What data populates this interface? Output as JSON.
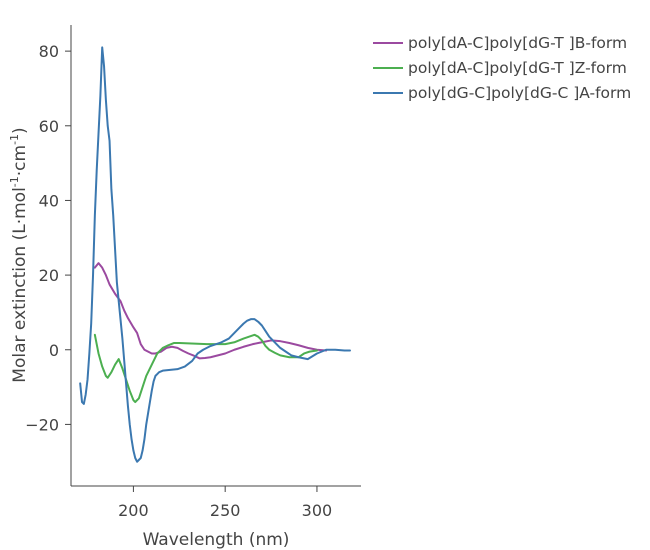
{
  "chart_data": {
    "type": "line",
    "title": "",
    "xlabel": "Wavelength (nm)",
    "ylabel": {
      "base": "Molar extinction (L·mol",
      "sup1": "-1",
      "mid": "·cm",
      "sup2": "-1",
      "end": ")"
    },
    "xlim": [
      166,
      324
    ],
    "ylim": [
      -36.5,
      87
    ],
    "xticks": [
      200,
      250,
      300
    ],
    "xtick_labels": [
      "200",
      "250",
      "300"
    ],
    "yticks": [
      80,
      60,
      40,
      20,
      0,
      -20
    ],
    "ytick_labels": [
      "80",
      "60",
      "40",
      "20",
      "0",
      "−20"
    ],
    "legend_position": "top-right",
    "series": [
      {
        "name": "poly[dA-C]poly[dG-T ]B-form",
        "color": "#9b4aa0",
        "x": [
          179,
          181,
          183,
          185,
          187,
          190,
          193,
          195,
          197,
          200,
          202,
          204,
          206,
          208,
          210,
          212,
          215,
          218,
          221,
          224,
          227,
          230,
          233,
          236,
          239,
          242,
          246,
          250,
          255,
          260,
          265,
          270,
          275,
          280,
          285,
          290,
          295,
          300,
          305
        ],
        "y": [
          22,
          23.2,
          22,
          20,
          17.5,
          15,
          13,
          10.5,
          8.5,
          6,
          4.5,
          1.5,
          0,
          -0.5,
          -1,
          -1,
          -0.5,
          0.5,
          0.8,
          0.5,
          -0.3,
          -1,
          -1.6,
          -2.3,
          -2.2,
          -2,
          -1.5,
          -1,
          0,
          0.8,
          1.5,
          2,
          2.5,
          2.3,
          1.8,
          1.2,
          0.5,
          0,
          -0.2
        ]
      },
      {
        "name": "poly[dA-C]poly[dG-T ]Z-form",
        "color": "#4caf50",
        "x": [
          179,
          181,
          183,
          185,
          186,
          188,
          190,
          192,
          194,
          196,
          198,
          200,
          201,
          203,
          205,
          207,
          210,
          213,
          216,
          219,
          222,
          225,
          230,
          240,
          250,
          255,
          260,
          263,
          266,
          268,
          270,
          272,
          274,
          277,
          280,
          285,
          290,
          293,
          296,
          300
        ],
        "y": [
          4,
          -1,
          -4.5,
          -7,
          -7.5,
          -6,
          -4,
          -2.5,
          -5,
          -8,
          -11,
          -13.5,
          -14,
          -13,
          -10,
          -7,
          -4,
          -1,
          0.5,
          1.2,
          1.8,
          1.8,
          1.7,
          1.5,
          1.5,
          2,
          3,
          3.5,
          4,
          3.5,
          2.5,
          1,
          0,
          -0.8,
          -1.5,
          -2,
          -2,
          -1,
          -0.5,
          -0.2
        ]
      },
      {
        "name": "poly[dG-C]poly[dG-C ]A-form",
        "color": "#3b78b0",
        "x": [
          171,
          172,
          173,
          174,
          175,
          176,
          177,
          178,
          179,
          180,
          181,
          182,
          183,
          184,
          185,
          186,
          187,
          188,
          189,
          190,
          191,
          192,
          193,
          194,
          195,
          196,
          197,
          198,
          199,
          200,
          201,
          202,
          203,
          204,
          205,
          206,
          207,
          208,
          209,
          210,
          211,
          212,
          213,
          214,
          215,
          216,
          218,
          220,
          224,
          228,
          232,
          235,
          238,
          240,
          242,
          245,
          248,
          252,
          255,
          258,
          260,
          262,
          264,
          266,
          268,
          270,
          272,
          274,
          276,
          278,
          280,
          283,
          286,
          290,
          295,
          300,
          305,
          310,
          315,
          318
        ],
        "y": [
          -9,
          -14,
          -14.5,
          -12,
          -8,
          -1,
          7,
          20,
          36,
          48,
          58,
          68,
          81,
          76,
          67,
          60,
          56,
          43,
          36,
          27,
          18,
          13,
          8,
          3,
          -3,
          -9,
          -15,
          -20,
          -24,
          -27,
          -29,
          -30,
          -29.5,
          -29,
          -27,
          -24,
          -20,
          -17,
          -14,
          -11,
          -8.5,
          -7,
          -6.5,
          -6,
          -5.8,
          -5.6,
          -5.5,
          -5.4,
          -5.2,
          -4.5,
          -3,
          -1,
          0,
          0.5,
          1,
          1.5,
          2,
          3,
          4.5,
          6,
          7,
          7.8,
          8.2,
          8.2,
          7.5,
          6.5,
          5,
          3.5,
          2.5,
          1.5,
          0.5,
          -0.5,
          -1.5,
          -2,
          -2.5,
          -1,
          0,
          0,
          -0.2,
          -0.2
        ]
      }
    ]
  }
}
